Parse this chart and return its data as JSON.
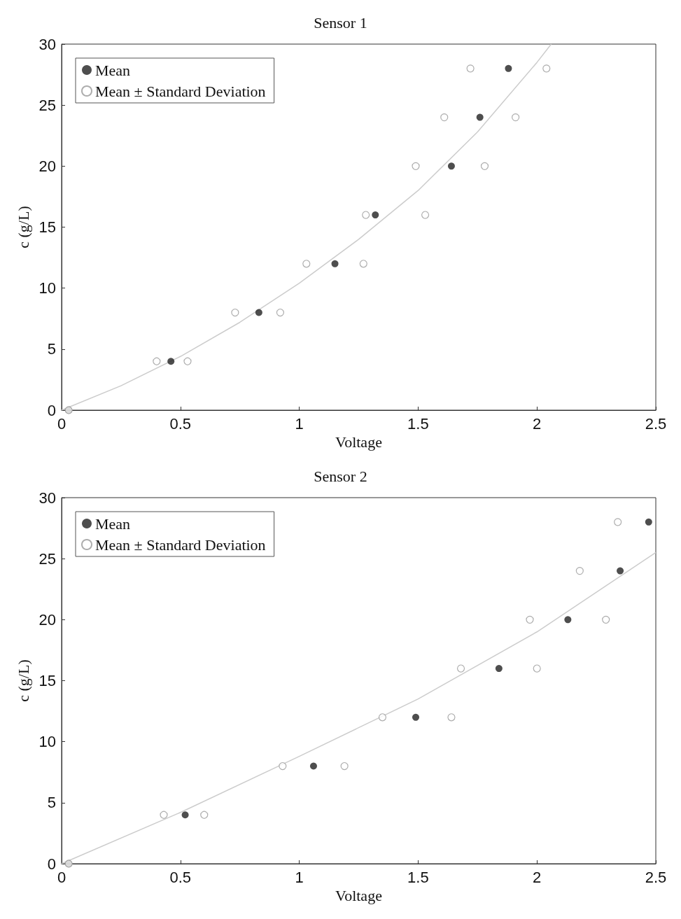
{
  "chart_data": [
    {
      "type": "scatter",
      "title": "Sensor 1",
      "xlabel": "Voltage",
      "ylabel": "c (g/L)",
      "xlim": [
        0,
        2.5
      ],
      "xticks": [
        0,
        0.5,
        1,
        1.5,
        2,
        2.5
      ],
      "ylim": [
        0,
        30
      ],
      "yticks": [
        0,
        5,
        10,
        15,
        20,
        25,
        30
      ],
      "grid": false,
      "legend": "top left",
      "marker": "circle",
      "series": [
        {
          "name": "Mean",
          "color": "#222222",
          "x": [
            0.03,
            0.46,
            0.83,
            1.15,
            1.32,
            1.64,
            1.76,
            1.88
          ],
          "values": [
            0,
            4,
            8,
            12,
            16,
            20,
            24,
            28
          ]
        },
        {
          "name": "Mean ± Standard Deviation",
          "color": "#999999",
          "x": [
            0.03,
            0.4,
            0.53,
            0.73,
            0.92,
            1.03,
            1.27,
            1.28,
            1.53,
            1.49,
            1.78,
            1.61,
            1.91,
            1.72,
            2.04
          ],
          "values": [
            0,
            4,
            4,
            8,
            8,
            12,
            12,
            16,
            16,
            20,
            20,
            24,
            24,
            28,
            28
          ]
        },
        {
          "type": "line",
          "color": "#cccccc",
          "marker": "none",
          "x": [
            0,
            0.25,
            0.5,
            0.75,
            1,
            1.25,
            1.5,
            1.75,
            2,
            2.06
          ],
          "values": [
            0,
            2,
            4.4,
            7.2,
            10.4,
            14,
            18,
            22.8,
            28.5,
            30
          ]
        }
      ]
    },
    {
      "type": "scatter",
      "title": "Sensor 2",
      "xlabel": "Voltage",
      "ylabel": "c (g/L)",
      "xlim": [
        0,
        2.5
      ],
      "xticks": [
        0,
        0.5,
        1,
        1.5,
        2,
        2.5
      ],
      "ylim": [
        0,
        30
      ],
      "yticks": [
        0,
        5,
        10,
        15,
        20,
        25,
        30
      ],
      "grid": false,
      "legend": "top left",
      "marker": "circle",
      "series": [
        {
          "name": "Mean",
          "color": "#222222",
          "x": [
            0.03,
            0.52,
            1.06,
            1.49,
            1.84,
            2.13,
            2.35,
            2.47
          ],
          "values": [
            0,
            4,
            8,
            12,
            16,
            20,
            24,
            28
          ]
        },
        {
          "name": "Mean ± Standard Deviation",
          "color": "#999999",
          "x": [
            0.03,
            0.43,
            0.6,
            0.93,
            1.19,
            1.35,
            1.64,
            1.68,
            2.0,
            1.97,
            2.29,
            2.18,
            2.34
          ],
          "values": [
            0,
            4,
            4,
            8,
            8,
            12,
            12,
            16,
            16,
            20,
            20,
            24,
            28
          ]
        },
        {
          "type": "line",
          "color": "#cccccc",
          "marker": "none",
          "x": [
            0,
            0.5,
            1,
            1.5,
            2,
            2.5
          ],
          "values": [
            0,
            4.2,
            8.8,
            13.5,
            19,
            25.5
          ]
        }
      ]
    }
  ]
}
